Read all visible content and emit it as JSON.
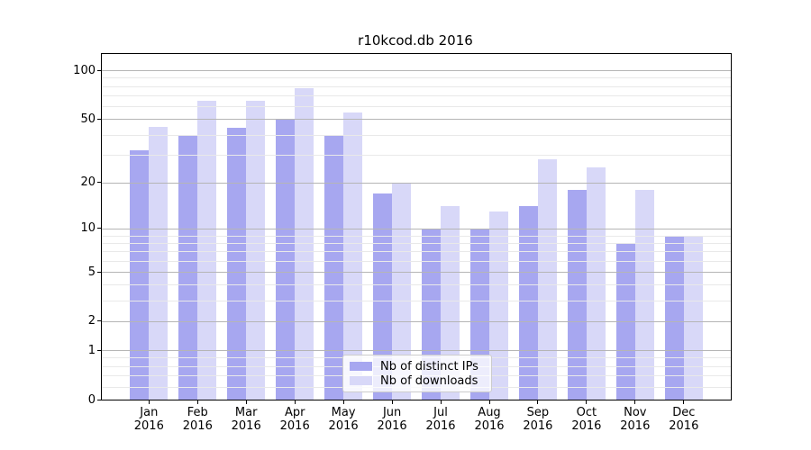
{
  "chart_data": {
    "type": "bar",
    "title": "r10kcod.db 2016",
    "yscale": "log1p",
    "ylim": [
      0,
      126
    ],
    "grid": "both",
    "legend_position": "lower center",
    "y_major_ticks": [
      0,
      1,
      2,
      5,
      10,
      20,
      50,
      100
    ],
    "y_minor_ticks": [
      0.2,
      0.4,
      0.6,
      0.8,
      3,
      4,
      6,
      7,
      8,
      9,
      30,
      40,
      60,
      70,
      80,
      90
    ],
    "categories": [
      "Jan",
      "Feb",
      "Mar",
      "Apr",
      "May",
      "Jun",
      "Jul",
      "Aug",
      "Sep",
      "Oct",
      "Nov",
      "Dec"
    ],
    "x_tick_second_line": "2016",
    "series": [
      {
        "name": "Nb of distinct IPs",
        "color": "#a7a7f0",
        "values": [
          32,
          40,
          44,
          50,
          40,
          17,
          10,
          10,
          14,
          18,
          8,
          9
        ]
      },
      {
        "name": "Nb of downloads",
        "color": "#d8d8f8",
        "values": [
          45,
          65,
          65,
          78,
          55,
          20,
          14,
          13,
          28,
          25,
          18,
          9
        ]
      }
    ],
    "colors": {
      "major_grid": "#b5b5b5",
      "minor_grid": "#e9e9e9",
      "axis": "#000000",
      "legend_border": "#cccccc"
    }
  }
}
